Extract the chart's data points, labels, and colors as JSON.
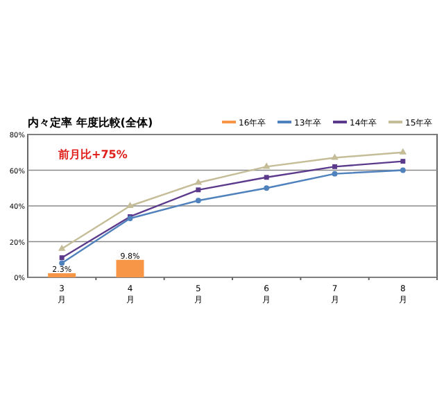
{
  "chart_data": {
    "type": "line",
    "title": "内々定率 年度比較(全体)",
    "annotations": [
      "前月比+75%"
    ],
    "categories": [
      "3月",
      "4月",
      "5月",
      "6月",
      "7月",
      "8月"
    ],
    "series": [
      {
        "name": "16年卒",
        "type": "bar",
        "color": "#f79646",
        "values": [
          2.3,
          9.8,
          null,
          null,
          null,
          null
        ],
        "value_labels": [
          "2.3%",
          "9.8%",
          null,
          null,
          null,
          null
        ]
      },
      {
        "name": "13年卒",
        "color": "#4f81bd",
        "marker": "circle",
        "values": [
          8,
          33,
          43,
          50,
          58,
          60
        ]
      },
      {
        "name": "14年卒",
        "color": "#5b3a8c",
        "marker": "square",
        "values": [
          11,
          34,
          49,
          56,
          62,
          65
        ]
      },
      {
        "name": "15年卒",
        "color": "#c4bd97",
        "marker": "triangle",
        "values": [
          16,
          40,
          53,
          62,
          67,
          70
        ]
      }
    ],
    "ylim": [
      0,
      80
    ],
    "yticks": [
      {
        "value": 0,
        "label": "0%"
      },
      {
        "value": 20,
        "label": "20%"
      },
      {
        "value": 40,
        "label": "40%"
      },
      {
        "value": 60,
        "label": "60%"
      },
      {
        "value": 80,
        "label": "80%"
      }
    ],
    "grid": "y",
    "legend": "top right"
  }
}
